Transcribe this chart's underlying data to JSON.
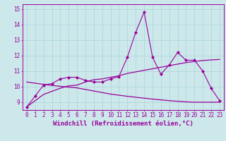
{
  "xlabel": "Windchill (Refroidissement éolien,°C)",
  "bg_color": "#cce8eb",
  "line_color": "#990099",
  "x": [
    0,
    1,
    2,
    3,
    4,
    5,
    6,
    7,
    8,
    9,
    10,
    11,
    12,
    13,
    14,
    15,
    16,
    17,
    18,
    19,
    20,
    21,
    22,
    23
  ],
  "y_jagged": [
    8.7,
    9.4,
    10.1,
    10.2,
    10.5,
    10.6,
    10.6,
    10.4,
    10.3,
    10.3,
    10.5,
    10.65,
    11.9,
    13.5,
    14.8,
    11.9,
    10.8,
    11.4,
    12.2,
    11.7,
    11.7,
    11.0,
    9.9,
    9.1
  ],
  "y_rising": [
    8.7,
    9.1,
    9.5,
    9.7,
    9.9,
    10.05,
    10.1,
    10.3,
    10.45,
    10.5,
    10.6,
    10.7,
    10.85,
    10.95,
    11.05,
    11.15,
    11.25,
    11.35,
    11.45,
    11.55,
    11.62,
    11.68,
    11.72,
    11.75
  ],
  "y_falling": [
    10.3,
    10.22,
    10.15,
    10.08,
    10.02,
    9.97,
    9.92,
    9.82,
    9.72,
    9.62,
    9.52,
    9.45,
    9.38,
    9.32,
    9.26,
    9.2,
    9.15,
    9.1,
    9.06,
    9.02,
    9.0,
    9.0,
    9.0,
    9.0
  ],
  "ylim": [
    8.5,
    15.3
  ],
  "yticks": [
    9,
    10,
    11,
    12,
    13,
    14,
    15
  ],
  "xticks": [
    0,
    1,
    2,
    3,
    4,
    5,
    6,
    7,
    8,
    9,
    10,
    11,
    12,
    13,
    14,
    15,
    16,
    17,
    18,
    19,
    20,
    21,
    22,
    23
  ],
  "grid_color": "#aad4d8",
  "tick_fontsize": 5.5,
  "xlabel_fontsize": 6.5
}
